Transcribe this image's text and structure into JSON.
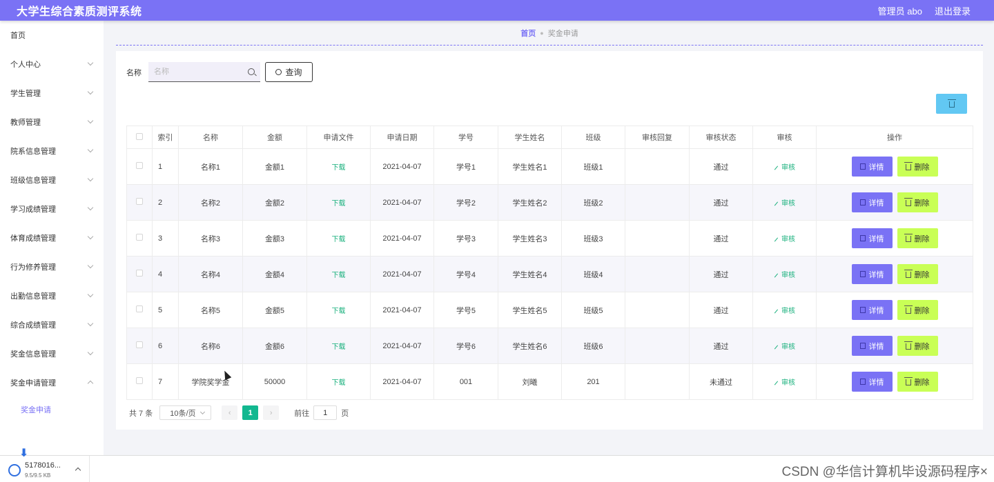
{
  "app": {
    "title": "大学生综合素质测评系统"
  },
  "header": {
    "admin_label": "管理员 abo",
    "logout_label": "退出登录"
  },
  "sidebar": {
    "items": [
      {
        "label": "首页",
        "chevron": "none"
      },
      {
        "label": "个人中心",
        "chevron": "down"
      },
      {
        "label": "学生管理",
        "chevron": "down"
      },
      {
        "label": "教师管理",
        "chevron": "down"
      },
      {
        "label": "院系信息管理",
        "chevron": "down"
      },
      {
        "label": "班级信息管理",
        "chevron": "down"
      },
      {
        "label": "学习成绩管理",
        "chevron": "down"
      },
      {
        "label": "体育成绩管理",
        "chevron": "down"
      },
      {
        "label": "行为修养管理",
        "chevron": "down"
      },
      {
        "label": "出勤信息管理",
        "chevron": "down"
      },
      {
        "label": "综合成绩管理",
        "chevron": "down"
      },
      {
        "label": "奖金信息管理",
        "chevron": "down"
      },
      {
        "label": "奖金申请管理",
        "chevron": "up"
      }
    ],
    "subitem": "奖金申请"
  },
  "breadcrumb": {
    "home": "首页",
    "current": "奖金申请"
  },
  "search": {
    "label": "名称",
    "placeholder": "名称",
    "value": "",
    "button_label": "查询"
  },
  "table": {
    "headers": [
      "",
      "索引",
      "名称",
      "金额",
      "申请文件",
      "申请日期",
      "学号",
      "学生姓名",
      "班级",
      "审核回复",
      "审核状态",
      "审核",
      "操作"
    ],
    "download_label": "下载",
    "audit_label": "审核",
    "detail_label": "详情",
    "delete_label": "删除",
    "rows": [
      {
        "index": "1",
        "name": "名称1",
        "amount": "金额1",
        "date": "2021-04-07",
        "student_id": "学号1",
        "student_name": "学生姓名1",
        "class": "班级1",
        "reply": "",
        "status": "通过"
      },
      {
        "index": "2",
        "name": "名称2",
        "amount": "金额2",
        "date": "2021-04-07",
        "student_id": "学号2",
        "student_name": "学生姓名2",
        "class": "班级2",
        "reply": "",
        "status": "通过"
      },
      {
        "index": "3",
        "name": "名称3",
        "amount": "金额3",
        "date": "2021-04-07",
        "student_id": "学号3",
        "student_name": "学生姓名3",
        "class": "班级3",
        "reply": "",
        "status": "通过"
      },
      {
        "index": "4",
        "name": "名称4",
        "amount": "金额4",
        "date": "2021-04-07",
        "student_id": "学号4",
        "student_name": "学生姓名4",
        "class": "班级4",
        "reply": "",
        "status": "通过"
      },
      {
        "index": "5",
        "name": "名称5",
        "amount": "金额5",
        "date": "2021-04-07",
        "student_id": "学号5",
        "student_name": "学生姓名5",
        "class": "班级5",
        "reply": "",
        "status": "通过"
      },
      {
        "index": "6",
        "name": "名称6",
        "amount": "金额6",
        "date": "2021-04-07",
        "student_id": "学号6",
        "student_name": "学生姓名6",
        "class": "班级6",
        "reply": "",
        "status": "通过"
      },
      {
        "index": "7",
        "name": "学院奖学金",
        "amount": "50000",
        "date": "2021-04-07",
        "student_id": "001",
        "student_name": "刘曦",
        "class": "201",
        "reply": "",
        "status": "未通过"
      }
    ]
  },
  "pagination": {
    "total": "共 7 条",
    "page_size": "10条/页",
    "prev": "‹",
    "current_page": "1",
    "next": "›",
    "goto_label": "前往",
    "goto_value": "1",
    "page_suffix": "页"
  },
  "download_bar": {
    "filename": "5178016...",
    "size": "9.5/9.5 KB"
  },
  "watermark": "CSDN @华信计算机毕设源码程序×"
}
